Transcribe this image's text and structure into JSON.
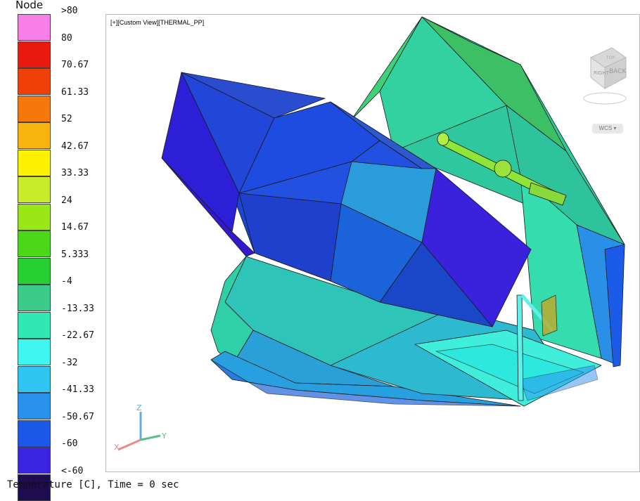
{
  "legend": {
    "title": "Node",
    "colors": [
      "#f87ee8",
      "#e81a10",
      "#f0400a",
      "#f5780c",
      "#f8b40c",
      "#fff200",
      "#c8ec2c",
      "#9ae616",
      "#4cd818",
      "#26d032",
      "#3ccc8a",
      "#30e8b4",
      "#40f6f0",
      "#30c4f0",
      "#2892ec",
      "#1c58e8",
      "#3a26e0",
      "#1e0c50"
    ],
    "labels": [
      ">80",
      "80",
      "70.67",
      "61.33",
      "52",
      "42.67",
      "33.33",
      "24",
      "14.67",
      "5.333",
      "-4",
      "-13.33",
      "-22.67",
      "-32",
      "-41.33",
      "-50.67",
      "-60",
      "<-60"
    ]
  },
  "viewport": {
    "label": "[+][Custom View][THERMAL_PP]",
    "wcs_label": "WCS",
    "viewcube": {
      "back": "BACK",
      "right": "RIGHT",
      "top": "TOP"
    },
    "triad": {
      "x": "X",
      "y": "Y",
      "z": "Z"
    }
  },
  "footer": {
    "text": "Temperature [C],  Time = 0 sec"
  }
}
